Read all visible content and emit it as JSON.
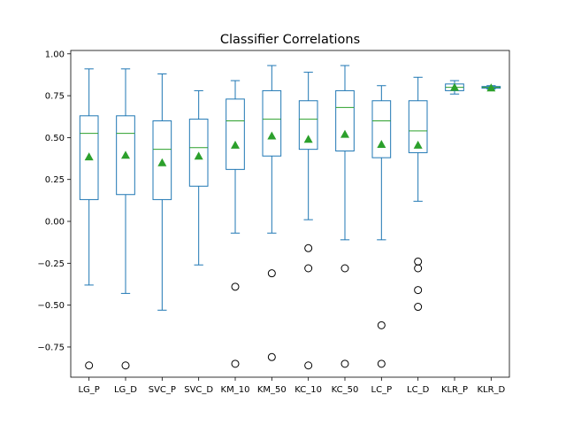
{
  "chart_data": {
    "type": "box",
    "title": "Classifier Correlations",
    "xlabel": "",
    "ylabel": "",
    "ylim": [
      -0.93,
      1.02
    ],
    "yticks": [
      1.0,
      0.75,
      0.5,
      0.25,
      0.0,
      -0.25,
      -0.5,
      -0.75
    ],
    "ytick_labels": [
      "1.00",
      "0.75",
      "0.50",
      "0.25",
      "0.00",
      "−0.25",
      "−0.50",
      "−0.75"
    ],
    "grid": false,
    "legend": "none",
    "colors": {
      "box": "#1f77b4",
      "median": "#2ca02c",
      "mean": "#2ca02c",
      "flier": "#000000"
    },
    "series": [
      {
        "label": "LG_P",
        "whisker_low": -0.38,
        "q1": 0.13,
        "median": 0.525,
        "q3": 0.63,
        "whisker_high": 0.91,
        "mean": 0.385,
        "outliers": [
          -0.86
        ]
      },
      {
        "label": "LG_D",
        "whisker_low": -0.43,
        "q1": 0.16,
        "median": 0.525,
        "q3": 0.63,
        "whisker_high": 0.91,
        "mean": 0.395,
        "outliers": [
          -0.86
        ]
      },
      {
        "label": "SVC_P",
        "whisker_low": -0.53,
        "q1": 0.13,
        "median": 0.43,
        "q3": 0.6,
        "whisker_high": 0.88,
        "mean": 0.35,
        "outliers": []
      },
      {
        "label": "SVC_D",
        "whisker_low": -0.26,
        "q1": 0.21,
        "median": 0.44,
        "q3": 0.61,
        "whisker_high": 0.78,
        "mean": 0.39,
        "outliers": []
      },
      {
        "label": "KM_10",
        "whisker_low": -0.07,
        "q1": 0.31,
        "median": 0.6,
        "q3": 0.73,
        "whisker_high": 0.84,
        "mean": 0.455,
        "outliers": [
          -0.39,
          -0.85
        ]
      },
      {
        "label": "KM_50",
        "whisker_low": -0.07,
        "q1": 0.39,
        "median": 0.61,
        "q3": 0.78,
        "whisker_high": 0.93,
        "mean": 0.51,
        "outliers": [
          -0.31,
          -0.81
        ]
      },
      {
        "label": "KC_10",
        "whisker_low": 0.01,
        "q1": 0.43,
        "median": 0.61,
        "q3": 0.72,
        "whisker_high": 0.89,
        "mean": 0.49,
        "outliers": [
          -0.16,
          -0.28,
          -0.86
        ]
      },
      {
        "label": "KC_50",
        "whisker_low": -0.11,
        "q1": 0.42,
        "median": 0.68,
        "q3": 0.78,
        "whisker_high": 0.93,
        "mean": 0.52,
        "outliers": [
          -0.28,
          -0.85
        ]
      },
      {
        "label": "LC_P",
        "whisker_low": -0.11,
        "q1": 0.38,
        "median": 0.6,
        "q3": 0.72,
        "whisker_high": 0.81,
        "mean": 0.46,
        "outliers": [
          -0.62,
          -0.85
        ]
      },
      {
        "label": "LC_D",
        "whisker_low": 0.12,
        "q1": 0.41,
        "median": 0.54,
        "q3": 0.72,
        "whisker_high": 0.86,
        "mean": 0.455,
        "outliers": [
          -0.24,
          -0.28,
          -0.41,
          -0.51
        ]
      },
      {
        "label": "KLR_P",
        "whisker_low": 0.76,
        "q1": 0.78,
        "median": 0.8,
        "q3": 0.82,
        "whisker_high": 0.84,
        "mean": 0.8,
        "outliers": []
      },
      {
        "label": "KLR_D",
        "whisker_low": 0.79,
        "q1": 0.795,
        "median": 0.8,
        "q3": 0.805,
        "whisker_high": 0.81,
        "mean": 0.797,
        "outliers": []
      }
    ]
  }
}
